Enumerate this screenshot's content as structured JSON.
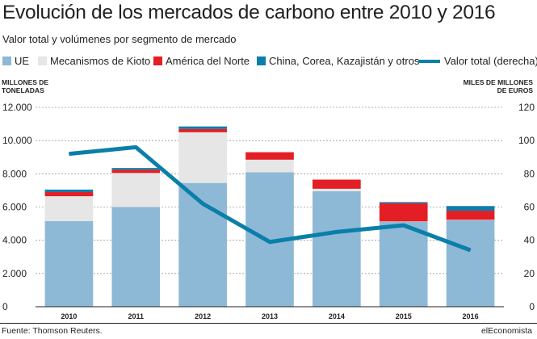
{
  "title": "Evolución de los mercados de carbono entre 2010 y 2016",
  "subtitle": "Valor total y volúmenes por segmento de mercado",
  "legend": [
    {
      "label": "UE",
      "color": "#8db9d6"
    },
    {
      "label": "Mecanismos de Kioto",
      "color": "#e6e6e6"
    },
    {
      "label": "América del Norte",
      "color": "#e31e24"
    },
    {
      "label": "China, Corea, Kazajistán y otros",
      "color": "#0b7eab"
    },
    {
      "label": "Valor total (derecha)",
      "color": "#0a7fa9"
    }
  ],
  "axis_left_title": [
    "MILLONES DE",
    "TONELADAS"
  ],
  "axis_right_title": [
    "MILES DE MILLONES",
    "DE EUROS"
  ],
  "source": "Fuente: Thomson Reuters.",
  "brand": "elEconomista",
  "chart_data": {
    "type": "bar",
    "stacked": true,
    "categories": [
      "2010",
      "2011",
      "2012",
      "2013",
      "2014",
      "2015",
      "2016"
    ],
    "series": [
      {
        "name": "UE",
        "color": "#8db9d6",
        "values": [
          5150,
          6000,
          7450,
          8100,
          6950,
          5100,
          5200
        ]
      },
      {
        "name": "Mecanismos de Kioto",
        "color": "#e6e6e6",
        "values": [
          1500,
          2050,
          3050,
          750,
          150,
          30,
          30
        ]
      },
      {
        "name": "América del Norte",
        "color": "#e31e24",
        "values": [
          250,
          200,
          200,
          450,
          550,
          1100,
          550
        ]
      },
      {
        "name": "China, Corea, Kazajistán y otros",
        "color": "#0b7eab",
        "values": [
          150,
          100,
          150,
          0,
          0,
          70,
          280
        ]
      }
    ],
    "line": {
      "name": "Valor total (derecha)",
      "color": "#0a7fa9",
      "values": [
        92,
        96,
        62,
        39,
        45,
        49,
        34
      ]
    },
    "ylim_left": [
      0,
      12000
    ],
    "yticks_left": [
      "0",
      "2.000",
      "4.000",
      "6.000",
      "8.000",
      "10.000",
      "12.000"
    ],
    "ylim_right": [
      0,
      120
    ],
    "yticks_right": [
      "0",
      "20",
      "40",
      "60",
      "80",
      "100",
      "120"
    ],
    "grid": true
  }
}
